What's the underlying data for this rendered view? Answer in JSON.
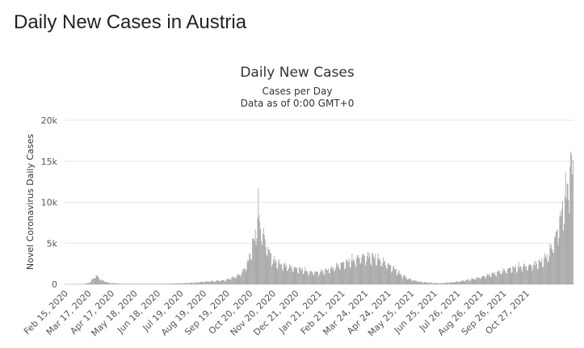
{
  "page": {
    "title": "Daily New Cases in Austria"
  },
  "chart_data": {
    "type": "bar",
    "title": "Daily New Cases",
    "subtitle": "Cases per Day",
    "note": "Data as of 0:00 GMT+0",
    "ylabel": "Novel Coronavirus Daily Cases",
    "xlabel": "",
    "ylim": [
      0,
      20000
    ],
    "y_ticks": [
      "0",
      "5k",
      "10k",
      "15k",
      "20k"
    ],
    "y_tick_values": [
      0,
      5000,
      10000,
      15000,
      20000
    ],
    "x_tick_labels": [
      "Feb 15, 2020",
      "Mar 17, 2020",
      "Apr 17, 2020",
      "May 18, 2020",
      "Jun 18, 2020",
      "Jul 19, 2020",
      "Aug 19, 2020",
      "Sep 19, 2020",
      "Oct 20, 2020",
      "Nov 20, 2020",
      "Dec 21, 2020",
      "Jan 21, 2021",
      "Feb 21, 2021",
      "Mar 24, 2021",
      "Apr 24, 2021",
      "May 25, 2021",
      "Jun 25, 2021",
      "Jul 26, 2021",
      "Aug 26, 2021",
      "Sep 26, 2021",
      "Oct 27, 2021"
    ],
    "bar_color": "#999999",
    "grid": true,
    "series": [
      {
        "values": [
          [
            0,
            0
          ],
          [
            25,
            10
          ],
          [
            33,
            200
          ],
          [
            38,
            700
          ],
          [
            42,
            1100
          ],
          [
            47,
            700
          ],
          [
            52,
            400
          ],
          [
            60,
            150
          ],
          [
            75,
            60
          ],
          [
            105,
            40
          ],
          [
            135,
            60
          ],
          [
            160,
            120
          ],
          [
            175,
            200
          ],
          [
            185,
            300
          ],
          [
            200,
            400
          ],
          [
            215,
            500
          ],
          [
            225,
            800
          ],
          [
            235,
            1200
          ],
          [
            242,
            2000
          ],
          [
            247,
            3000
          ],
          [
            252,
            5000
          ],
          [
            256,
            6000
          ],
          [
            260,
            9500
          ],
          [
            263,
            7000
          ],
          [
            266,
            6500
          ],
          [
            270,
            5000
          ],
          [
            275,
            4000
          ],
          [
            280,
            3000
          ],
          [
            290,
            2500
          ],
          [
            300,
            2200
          ],
          [
            310,
            2000
          ],
          [
            320,
            1800
          ],
          [
            330,
            1500
          ],
          [
            340,
            1500
          ],
          [
            350,
            1700
          ],
          [
            360,
            2000
          ],
          [
            370,
            2500
          ],
          [
            380,
            2800
          ],
          [
            390,
            3100
          ],
          [
            400,
            3500
          ],
          [
            408,
            3500
          ],
          [
            416,
            3400
          ],
          [
            424,
            3000
          ],
          [
            432,
            2600
          ],
          [
            442,
            2000
          ],
          [
            452,
            1200
          ],
          [
            462,
            700
          ],
          [
            472,
            400
          ],
          [
            482,
            250
          ],
          [
            495,
            150
          ],
          [
            505,
            120
          ],
          [
            515,
            200
          ],
          [
            530,
            350
          ],
          [
            545,
            600
          ],
          [
            560,
            900
          ],
          [
            575,
            1300
          ],
          [
            590,
            1700
          ],
          [
            600,
            2000
          ],
          [
            612,
            2200
          ],
          [
            625,
            2300
          ],
          [
            640,
            2800
          ],
          [
            650,
            3700
          ],
          [
            660,
            6000
          ],
          [
            668,
            9000
          ],
          [
            675,
            12000
          ],
          [
            680,
            14500
          ],
          [
            683,
            15000
          ]
        ]
      }
    ]
  }
}
